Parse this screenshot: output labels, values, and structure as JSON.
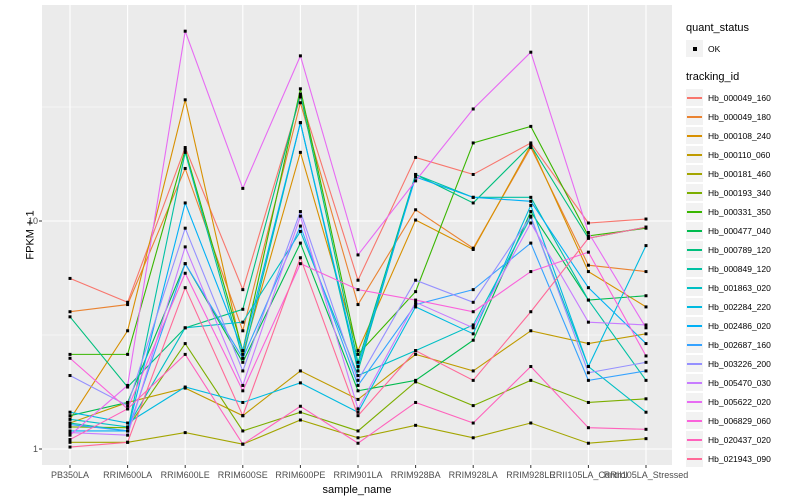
{
  "chart_data": {
    "type": "line",
    "title": "",
    "xlabel": "sample_name",
    "ylabel": "FPKM + 1",
    "y_scale": "log10",
    "y_ticks": [
      1,
      10
    ],
    "y_minor_ticks": [
      3.1623,
      31.623
    ],
    "ylim": [
      0.95,
      88
    ],
    "legend_position": "right",
    "grid": "on",
    "point_marker": "small-black-square",
    "categories": [
      "PB350LA",
      "RRIM600LA",
      "RRIM600LE",
      "RRIM600SE",
      "RRIM600PE",
      "RRIM901LA",
      "RRIM928BA",
      "RRIM928LA",
      "RRIM928LE",
      "RRII105LA_Control",
      "RRII105LA_Stressed"
    ],
    "series": [
      {
        "name": "Hb_000049_160",
        "color": "#F8766D",
        "values": [
          5.6,
          4.4,
          21,
          5.0,
          35,
          5.5,
          19,
          16,
          22,
          9.8,
          10.2
        ]
      },
      {
        "name": "Hb_000049_180",
        "color": "#EA8331",
        "values": [
          4.0,
          4.3,
          17,
          3.3,
          33,
          4.3,
          11.2,
          7.6,
          21,
          6.4,
          6.0
        ]
      },
      {
        "name": "Hb_000108_240",
        "color": "#D89000",
        "values": [
          1.35,
          3.3,
          34,
          2.6,
          20,
          2.7,
          10.1,
          7.5,
          21.5,
          6.0,
          4.2
        ]
      },
      {
        "name": "Hb_000110_060",
        "color": "#C09B00",
        "values": [
          1.3,
          1.6,
          1.85,
          1.4,
          2.2,
          1.65,
          2.6,
          2.2,
          3.3,
          2.9,
          3.2
        ]
      },
      {
        "name": "Hb_000181_460",
        "color": "#A3A500",
        "values": [
          1.07,
          1.07,
          1.18,
          1.05,
          1.34,
          1.12,
          1.27,
          1.12,
          1.3,
          1.06,
          1.11
        ]
      },
      {
        "name": "Hb_000193_340",
        "color": "#7CAE00",
        "values": [
          1.25,
          1.24,
          2.9,
          1.2,
          1.45,
          1.2,
          1.97,
          1.55,
          2.0,
          1.6,
          1.66
        ]
      },
      {
        "name": "Hb_000331_350",
        "color": "#39B600",
        "values": [
          2.6,
          2.6,
          20.5,
          2.7,
          38,
          2.6,
          4.9,
          22,
          26,
          8.6,
          9.3
        ]
      },
      {
        "name": "Hb_000477_040",
        "color": "#00BB4E",
        "values": [
          1.4,
          1.6,
          6.5,
          2.4,
          8.0,
          1.8,
          2.0,
          3.0,
          11,
          4.5,
          4.7
        ]
      },
      {
        "name": "Hb_000789_120",
        "color": "#00BF7D",
        "values": [
          3.8,
          1.87,
          3.4,
          4.1,
          36,
          2.4,
          16,
          12,
          21.5,
          8.4,
          9.4
        ]
      },
      {
        "name": "Hb_000849_120",
        "color": "#00C1A3",
        "values": [
          1.3,
          1.2,
          20,
          2.5,
          27,
          2.2,
          16,
          12.7,
          12.7,
          4.5,
          2.0
        ]
      },
      {
        "name": "Hb_001863_020",
        "color": "#00BFC4",
        "values": [
          1.35,
          1.25,
          3.4,
          3.6,
          9.0,
          2.1,
          2.7,
          3.5,
          10.4,
          2.3,
          1.45
        ]
      },
      {
        "name": "Hb_002284_220",
        "color": "#00BAE0",
        "values": [
          1.45,
          1.3,
          1.87,
          1.6,
          1.95,
          1.45,
          4.2,
          3.2,
          11.7,
          2.3,
          7.8
        ]
      },
      {
        "name": "Hb_002486_020",
        "color": "#00B0F6",
        "values": [
          1.2,
          1.2,
          12,
          2.7,
          27,
          2.3,
          15.6,
          12.7,
          12.2,
          5.1,
          2.9
        ]
      },
      {
        "name": "Hb_002687_160",
        "color": "#35A2FF",
        "values": [
          1.28,
          1.2,
          6.5,
          2.5,
          9.5,
          1.9,
          4.3,
          5.0,
          8.0,
          2.0,
          2.2
        ]
      },
      {
        "name": "Hb_003226_200",
        "color": "#9590FF",
        "values": [
          2.1,
          1.55,
          9.3,
          2.2,
          11,
          2.0,
          5.5,
          4.4,
          10.5,
          2.16,
          2.4
        ]
      },
      {
        "name": "Hb_005470_030",
        "color": "#C77CFF",
        "values": [
          1.18,
          1.15,
          7.7,
          1.9,
          10.5,
          1.5,
          4.4,
          3.4,
          9.8,
          3.6,
          3.5
        ]
      },
      {
        "name": "Hb_005622_020",
        "color": "#E76BF3",
        "values": [
          1.15,
          1.9,
          68,
          13.9,
          53,
          7.1,
          15,
          31,
          55,
          8.9,
          3.4
        ]
      },
      {
        "name": "Hb_006829_060",
        "color": "#FA62DB",
        "values": [
          2.5,
          1.5,
          5.9,
          1.8,
          6.5,
          5.0,
          4.5,
          4.0,
          6.0,
          7.3,
          2.56
        ]
      },
      {
        "name": "Hb_020437_020",
        "color": "#FF62BC",
        "values": [
          1.1,
          1.5,
          2.6,
          1.05,
          1.54,
          1.06,
          1.6,
          1.3,
          2.3,
          1.24,
          1.22
        ]
      },
      {
        "name": "Hb_021943_090",
        "color": "#FF6A98",
        "values": [
          1.02,
          1.07,
          5.1,
          1.4,
          6.9,
          1.4,
          2.7,
          2.0,
          4.0,
          8.4,
          9.4
        ]
      }
    ]
  },
  "axes": {
    "x_title": "sample_name",
    "y_title": "FPKM + 1"
  },
  "legend": {
    "quant_title": "quant_status",
    "quant_items": [
      {
        "label": "OK"
      }
    ],
    "series_title": "tracking_id"
  },
  "colors": {
    "panel_bg": "#EBEBEB",
    "grid": "#FFFFFF",
    "axis_text": "#4d4d4d",
    "point": "#000000",
    "legend_key_bg": "#F2F2F2"
  }
}
